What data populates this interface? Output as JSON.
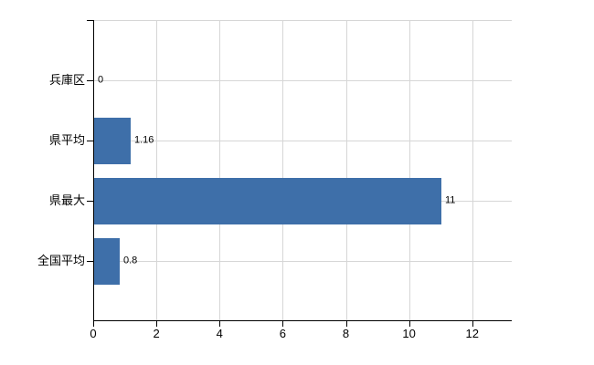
{
  "chart_data": {
    "type": "bar",
    "orientation": "horizontal",
    "title": "",
    "xlabel": "",
    "ylabel": "",
    "categories": [
      "兵庫区",
      "県平均",
      "県最大",
      "全国平均"
    ],
    "values": [
      0,
      1.16,
      11,
      0.8
    ],
    "value_labels": [
      "0",
      "1.16",
      "11",
      "0.8"
    ],
    "x_ticks": [
      0,
      2,
      4,
      6,
      8,
      10,
      12
    ],
    "x_tick_labels": [
      "0",
      "2",
      "4",
      "6",
      "8",
      "10",
      "12"
    ],
    "xlim": [
      0,
      13.25
    ],
    "grid": true,
    "legend": false,
    "colors": {
      "bar": "#3e6fa9",
      "gridline": "#d6d6d6",
      "axis": "#000000",
      "text": "#000000",
      "background": "#ffffff"
    }
  }
}
